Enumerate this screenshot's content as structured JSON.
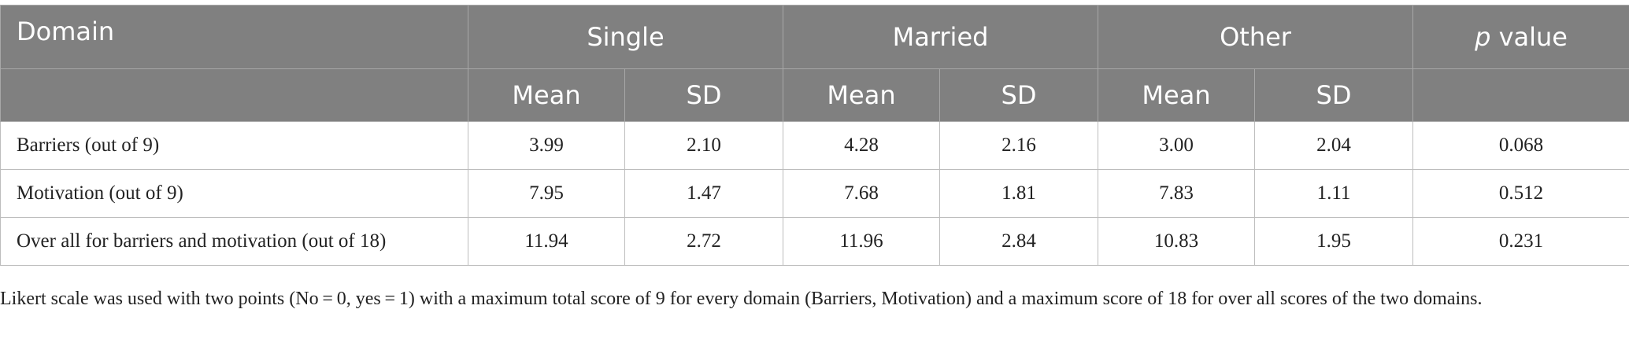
{
  "table": {
    "header": {
      "domain": "Domain",
      "groups": [
        "Single",
        "Married",
        "Other"
      ],
      "p_value": [
        "p",
        "value"
      ],
      "sub": [
        "Mean",
        "SD",
        "Mean",
        "SD",
        "Mean",
        "SD"
      ]
    },
    "rows": [
      [
        "Barriers (out of 9)",
        "3.99",
        "2.10",
        "4.28",
        "2.16",
        "3.00",
        "2.04",
        "0.068"
      ],
      [
        "Motivation (out of 9)",
        "7.95",
        "1.47",
        "7.68",
        "1.81",
        "7.83",
        "1.11",
        "0.512"
      ],
      [
        "Over all for barriers and motivation (out of 18)",
        "11.94",
        "2.72",
        "11.96",
        "2.84",
        "10.83",
        "1.95",
        "0.231"
      ]
    ]
  },
  "footnote": "Likert scale was used with two points (No = 0, yes = 1) with a maximum total score of 9 for every domain (Barriers, Motivation) and a maximum score of 18 for over all scores of the two domains."
}
